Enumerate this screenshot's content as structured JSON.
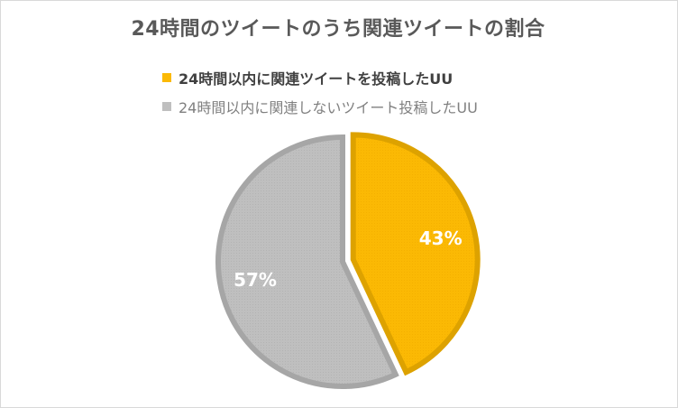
{
  "chart_data": {
    "type": "pie",
    "title": "24時間のツイートのうち関連ツイートの割合",
    "legend_position": "top",
    "categories": [
      "24時間以内に関連ツイートを投稿したUU",
      "24時間以内に関連しないツイート投稿したUU"
    ],
    "values": [
      43,
      57
    ],
    "labels": [
      "43%",
      "57%"
    ],
    "colors": [
      "#FBB904",
      "#BFBFBF"
    ],
    "outline_colors": [
      "#DDA200",
      "#A6A6A6"
    ],
    "exploded_slice": 0
  }
}
